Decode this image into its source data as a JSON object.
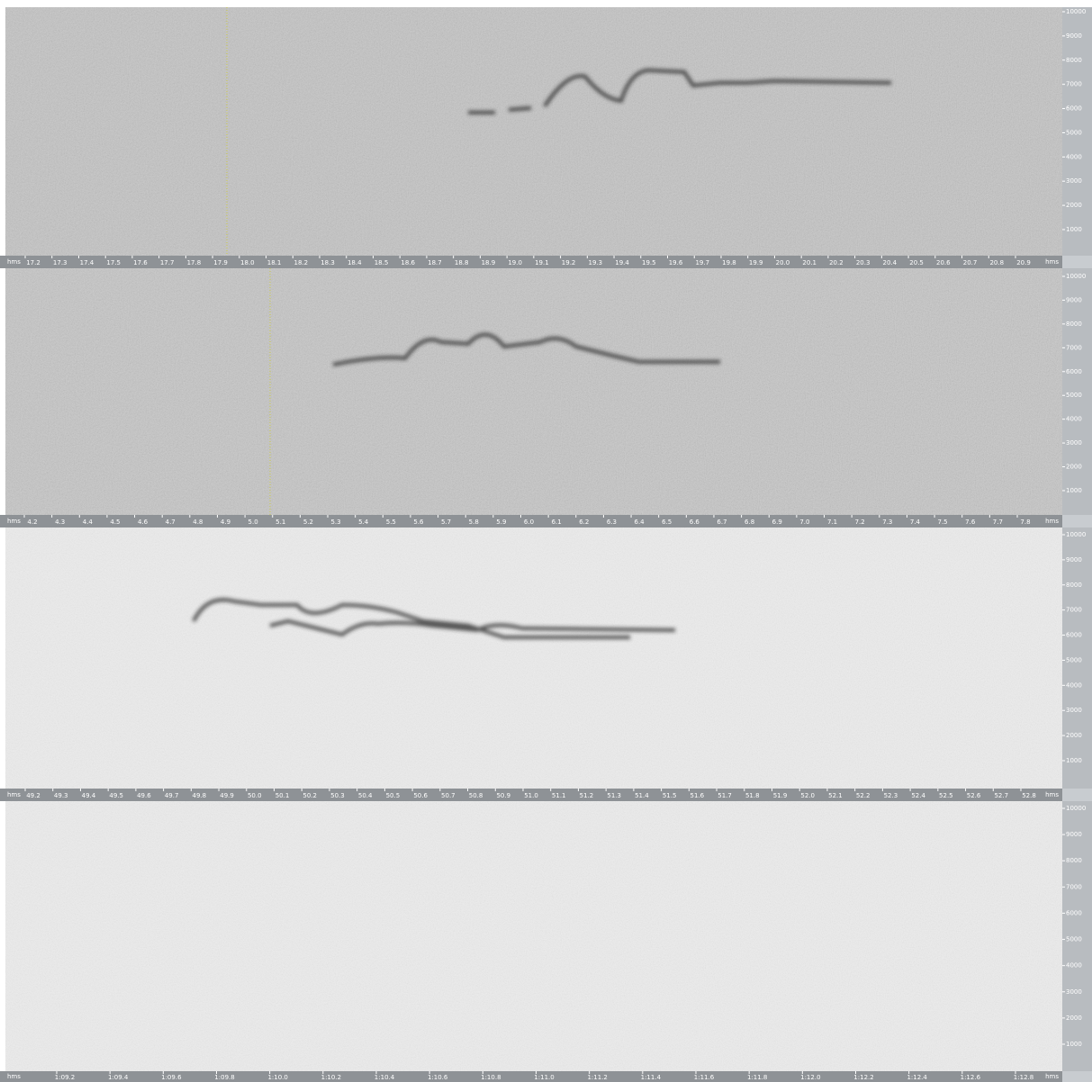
{
  "panels": [
    {
      "x_unit_left": "hms",
      "x_unit_right": "hms",
      "x_ticks": [
        "17.2",
        "17.3",
        "17.4",
        "17.5",
        "17.6",
        "17.7",
        "17.8",
        "17.9",
        "18.0",
        "18.1",
        "18.2",
        "18.3",
        "18.4",
        "18.5",
        "18.6",
        "18.7",
        "18.8",
        "18.9",
        "19.0",
        "19.1",
        "19.2",
        "19.3",
        "19.4",
        "19.5",
        "19.6",
        "19.7",
        "19.8",
        "19.9",
        "20.0",
        "20.1",
        "20.2",
        "20.3",
        "20.4",
        "20.5",
        "20.6",
        "20.7",
        "20.8",
        "20.9"
      ],
      "y_ticks": [
        "10000",
        "9000",
        "8000",
        "7000",
        "6000",
        "5000",
        "4000",
        "3000",
        "2000",
        "1000"
      ]
    },
    {
      "x_unit_left": "hms",
      "x_unit_right": "hms",
      "x_ticks": [
        "4.2",
        "4.3",
        "4.4",
        "4.5",
        "4.6",
        "4.7",
        "4.8",
        "4.9",
        "5.0",
        "5.1",
        "5.2",
        "5.3",
        "5.4",
        "5.5",
        "5.6",
        "5.7",
        "5.8",
        "5.9",
        "6.0",
        "6.1",
        "6.2",
        "6.3",
        "6.4",
        "6.5",
        "6.6",
        "6.7",
        "6.8",
        "6.9",
        "7.0",
        "7.1",
        "7.2",
        "7.3",
        "7.4",
        "7.5",
        "7.6",
        "7.7",
        "7.8"
      ],
      "y_ticks": [
        "10000",
        "9000",
        "8000",
        "7000",
        "6000",
        "5000",
        "4000",
        "3000",
        "2000",
        "1000"
      ]
    },
    {
      "x_unit_left": "hms",
      "x_unit_right": "hms",
      "x_ticks": [
        "49.2",
        "49.3",
        "49.4",
        "49.5",
        "49.6",
        "49.7",
        "49.8",
        "49.9",
        "50.0",
        "50.1",
        "50.2",
        "50.3",
        "50.4",
        "50.5",
        "50.6",
        "50.7",
        "50.8",
        "50.9",
        "51.0",
        "51.1",
        "51.2",
        "51.3",
        "51.4",
        "51.5",
        "51.6",
        "51.7",
        "51.8",
        "51.9",
        "52.0",
        "52.1",
        "52.2",
        "52.3",
        "52.4",
        "52.5",
        "52.6",
        "52.7",
        "52.8"
      ],
      "y_ticks": [
        "10000",
        "9000",
        "8000",
        "7000",
        "6000",
        "5000",
        "4000",
        "3000",
        "2000",
        "1000"
      ]
    },
    {
      "x_unit_left": "hms",
      "x_unit_right": "hms",
      "x_ticks": [
        "1:09.2",
        "1:09.4",
        "1:09.6",
        "1:09.8",
        "1:10.0",
        "1:10.2",
        "1:10.4",
        "1:10.6",
        "1:10.8",
        "1:11.0",
        "1:11.2",
        "1:11.4",
        "1:11.6",
        "1:11.8",
        "1:12.0",
        "1:12.2",
        "1:12.4",
        "1:12.6",
        "1:12.8"
      ],
      "y_ticks": [
        "10000",
        "9000",
        "8000",
        "7000",
        "6000",
        "5000",
        "4000",
        "3000",
        "2000",
        "1000"
      ]
    }
  ]
}
